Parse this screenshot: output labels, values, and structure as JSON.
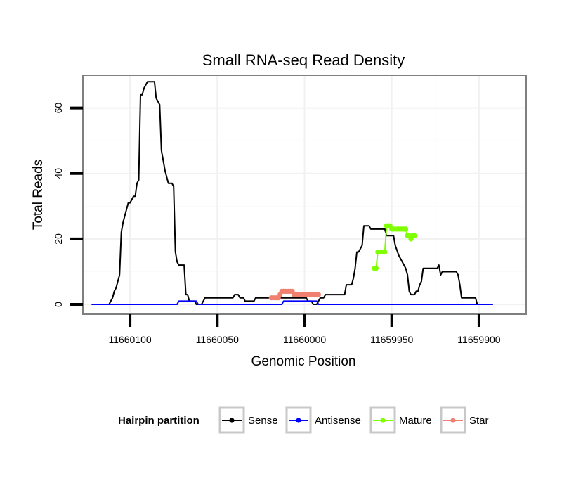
{
  "chart_data": {
    "type": "line",
    "title": "Small RNA-seq Read Density",
    "xlabel": "Genomic Position",
    "ylabel": "Total Reads",
    "x_reversed": true,
    "xlim": [
      11660127,
      11659873
    ],
    "ylim": [
      -3,
      70
    ],
    "xticks": [
      11660100,
      11660050,
      11660000,
      11659950,
      11659900
    ],
    "xtick_labels": [
      "11660100",
      "11660050",
      "11660000",
      "11659950",
      "11659900"
    ],
    "yticks": [
      0,
      20,
      40,
      60
    ],
    "ytick_labels": [
      "0",
      "20",
      "40",
      "60"
    ],
    "grid": true,
    "legend": {
      "title": "Hairpin partition",
      "position": "bottom",
      "entries": [
        {
          "name": "Sense",
          "color": "#000000"
        },
        {
          "name": "Antisense",
          "color": "#0000ff"
        },
        {
          "name": "Mature",
          "color": "#7fff00"
        },
        {
          "name": "Star",
          "color": "#f08070"
        }
      ]
    },
    "series": [
      {
        "name": "Sense",
        "color": "#000000",
        "style": "line",
        "points": [
          [
            11660122,
            0
          ],
          [
            11660112,
            0
          ],
          [
            11660111,
            1
          ],
          [
            11660110,
            2
          ],
          [
            11660109,
            4
          ],
          [
            11660108,
            5
          ],
          [
            11660107,
            7
          ],
          [
            11660106,
            9
          ],
          [
            11660105,
            22
          ],
          [
            11660104,
            25
          ],
          [
            11660103,
            27
          ],
          [
            11660102,
            29
          ],
          [
            11660101,
            31
          ],
          [
            11660100,
            31
          ],
          [
            11660099,
            32
          ],
          [
            11660098,
            33
          ],
          [
            11660097,
            33
          ],
          [
            11660096,
            37
          ],
          [
            11660095,
            38
          ],
          [
            11660094,
            64
          ],
          [
            11660093,
            64
          ],
          [
            11660092,
            66
          ],
          [
            11660091,
            67
          ],
          [
            11660090,
            68
          ],
          [
            11660086,
            68
          ],
          [
            11660085,
            63
          ],
          [
            11660084,
            62
          ],
          [
            11660083,
            61
          ],
          [
            11660082,
            47
          ],
          [
            11660081,
            44
          ],
          [
            11660080,
            41
          ],
          [
            11660079,
            39
          ],
          [
            11660078,
            37
          ],
          [
            11660076,
            37
          ],
          [
            11660075,
            36
          ],
          [
            11660074,
            16
          ],
          [
            11660073,
            13
          ],
          [
            11660072,
            12
          ],
          [
            11660069,
            12
          ],
          [
            11660068,
            3
          ],
          [
            11660067,
            3
          ],
          [
            11660066,
            1
          ],
          [
            11660063,
            1
          ],
          [
            11660062,
            0
          ],
          [
            11660059,
            0
          ],
          [
            11660058,
            1
          ],
          [
            11660057,
            2
          ],
          [
            11660041,
            2
          ],
          [
            11660040,
            3
          ],
          [
            11660038,
            3
          ],
          [
            11660037,
            2
          ],
          [
            11660035,
            2
          ],
          [
            11660034,
            1
          ],
          [
            11660029,
            1
          ],
          [
            11660028,
            2
          ],
          [
            11659999,
            2
          ],
          [
            11659998,
            1
          ],
          [
            11659996,
            1
          ],
          [
            11659995,
            0
          ],
          [
            11659993,
            0
          ],
          [
            11659992,
            1
          ],
          [
            11659991,
            2
          ],
          [
            11659989,
            2
          ],
          [
            11659988,
            3
          ],
          [
            11659977,
            3
          ],
          [
            11659976,
            6
          ],
          [
            11659973,
            6
          ],
          [
            11659972,
            8
          ],
          [
            11659971,
            11
          ],
          [
            11659970,
            16
          ],
          [
            11659969,
            16
          ],
          [
            11659968,
            17
          ],
          [
            11659967,
            18
          ],
          [
            11659966,
            24
          ],
          [
            11659963,
            24
          ],
          [
            11659962,
            23
          ],
          [
            11659954,
            23
          ],
          [
            11659953,
            21
          ],
          [
            11659949,
            21
          ],
          [
            11659948,
            18
          ],
          [
            11659946,
            15
          ],
          [
            11659943,
            12
          ],
          [
            11659942,
            11
          ],
          [
            11659941,
            9
          ],
          [
            11659940,
            4
          ],
          [
            11659939,
            3
          ],
          [
            11659937,
            3
          ],
          [
            11659936,
            4
          ],
          [
            11659935,
            4
          ],
          [
            11659934,
            6
          ],
          [
            11659933,
            7
          ],
          [
            11659932,
            11
          ],
          [
            11659924,
            11
          ],
          [
            11659923,
            12
          ],
          [
            11659922,
            9
          ],
          [
            11659921,
            10
          ],
          [
            11659913,
            10
          ],
          [
            11659912,
            9
          ],
          [
            11659911,
            6
          ],
          [
            11659910,
            2
          ],
          [
            11659902,
            2
          ],
          [
            11659901,
            0
          ],
          [
            11659892,
            0
          ]
        ]
      },
      {
        "name": "Antisense",
        "color": "#0000ff",
        "style": "line",
        "points": [
          [
            11660122,
            0
          ],
          [
            11660073,
            0
          ],
          [
            11660072,
            1
          ],
          [
            11660062,
            1
          ],
          [
            11660061,
            0
          ],
          [
            11660013,
            0
          ],
          [
            11660012,
            1
          ],
          [
            11659993,
            1
          ],
          [
            11659992,
            0
          ],
          [
            11659892,
            0
          ]
        ]
      },
      {
        "name": "Star",
        "color": "#f08070",
        "style": "dots",
        "points": [
          [
            11660019,
            2
          ],
          [
            11660018,
            2
          ],
          [
            11660017,
            2
          ],
          [
            11660016,
            2
          ],
          [
            11660015,
            2
          ],
          [
            11660014,
            3
          ],
          [
            11660013,
            4
          ],
          [
            11660012,
            4
          ],
          [
            11660011,
            4
          ],
          [
            11660010,
            4
          ],
          [
            11660009,
            4
          ],
          [
            11660008,
            4
          ],
          [
            11660007,
            4
          ],
          [
            11660006,
            3
          ],
          [
            11660005,
            3
          ],
          [
            11660004,
            3
          ],
          [
            11660003,
            3
          ],
          [
            11660002,
            3
          ],
          [
            11660001,
            3
          ],
          [
            11660000,
            3
          ],
          [
            11659999,
            3
          ],
          [
            11659998,
            3
          ],
          [
            11659997,
            3
          ],
          [
            11659996,
            3
          ],
          [
            11659995,
            3
          ],
          [
            11659994,
            3
          ],
          [
            11659993,
            3
          ],
          [
            11659992,
            3
          ]
        ]
      },
      {
        "name": "Mature",
        "color": "#7fff00",
        "style": "dots",
        "points": [
          [
            11659960,
            11
          ],
          [
            11659959,
            11
          ],
          [
            11659958,
            16
          ],
          [
            11659957,
            16
          ],
          [
            11659956,
            16
          ],
          [
            11659955,
            16
          ],
          [
            11659954,
            16
          ],
          [
            11659953,
            24
          ],
          [
            11659952,
            24
          ],
          [
            11659951,
            24
          ],
          [
            11659950,
            23
          ],
          [
            11659949,
            23
          ],
          [
            11659948,
            23
          ],
          [
            11659947,
            23
          ],
          [
            11659946,
            23
          ],
          [
            11659945,
            23
          ],
          [
            11659944,
            23
          ],
          [
            11659943,
            23
          ],
          [
            11659942,
            23
          ],
          [
            11659941,
            21
          ],
          [
            11659940,
            21
          ],
          [
            11659939,
            20
          ],
          [
            11659938,
            21
          ],
          [
            11659937,
            21
          ]
        ]
      }
    ]
  }
}
